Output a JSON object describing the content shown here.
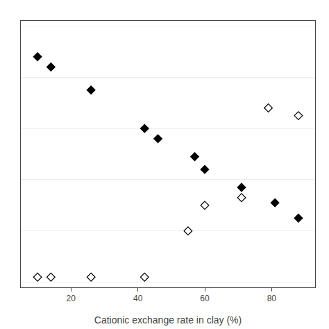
{
  "chart_data": {
    "type": "scatter",
    "xlabel": "Cationic exchange rate in clay (%)",
    "xlim": [
      5,
      93
    ],
    "ylim": [
      -0.02,
      1.02
    ],
    "xticks": [
      20,
      40,
      60,
      80
    ],
    "yticks": [
      0.0,
      0.2,
      0.4,
      0.6,
      0.8,
      1.0
    ],
    "grid": "y",
    "tick_labels": "x",
    "series": [
      {
        "color": "#000000",
        "marker": "diamond",
        "x": [
          10,
          14,
          26,
          42,
          46,
          57,
          60,
          71,
          81,
          88
        ],
        "values": [
          0.88,
          0.84,
          0.75,
          0.6,
          0.56,
          0.49,
          0.44,
          0.37,
          0.31,
          0.25
        ]
      },
      {
        "color": "#000000",
        "marker": "diamond-open",
        "x": [
          10,
          14,
          26,
          42,
          55,
          60,
          71,
          79,
          88
        ],
        "values": [
          0.02,
          0.02,
          0.02,
          0.02,
          0.2,
          0.3,
          0.33,
          0.68,
          0.65
        ]
      }
    ]
  }
}
